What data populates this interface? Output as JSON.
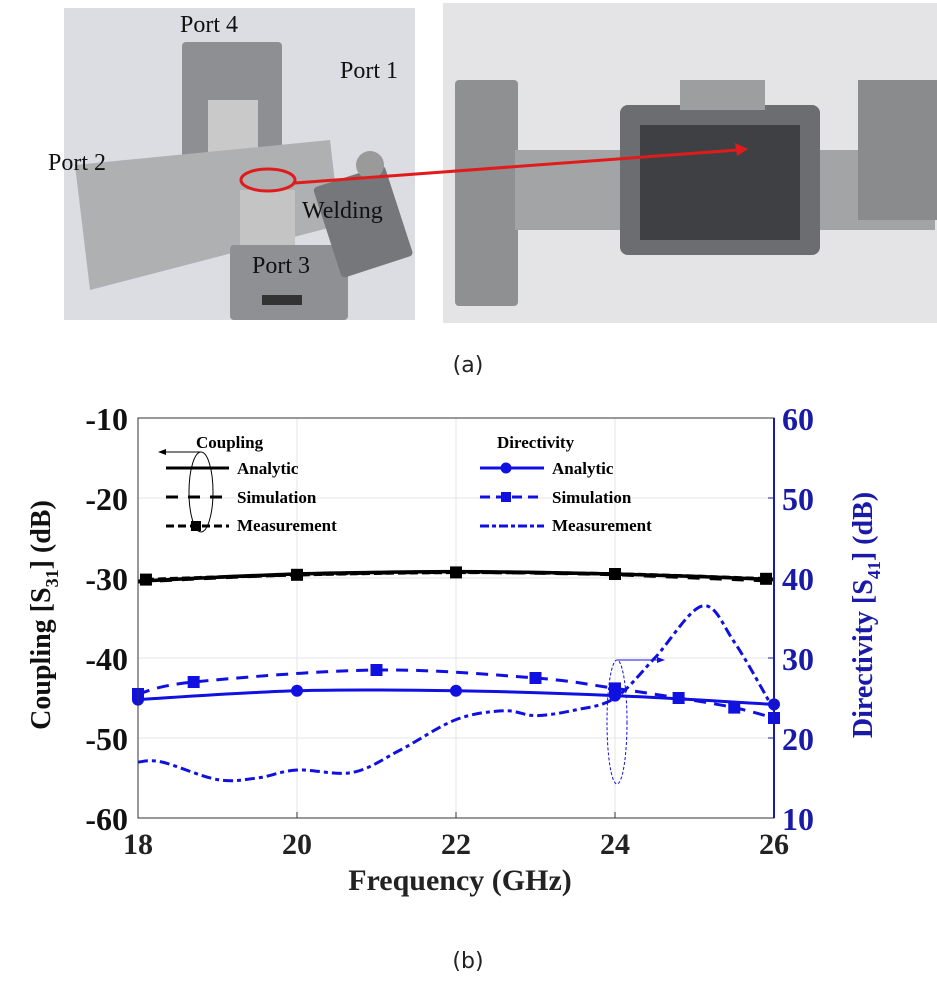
{
  "photo": {
    "labels": {
      "port4": "Port 4",
      "port1": "Port 1",
      "port2": "Port 2",
      "welding": "Welding",
      "port3": "Port 3"
    },
    "caption": "(a)",
    "highlight_color": "#e01b1b"
  },
  "chart_caption": "(b)",
  "chart_data": {
    "type": "line",
    "xlabel": "Frequency (GHz)",
    "ylabel_left": {
      "main": "Coupling [S",
      "sub": "31",
      "tail": "] (dB)"
    },
    "ylabel_right": {
      "main": "Directivity [S",
      "sub": "41",
      "tail": "] (dB)"
    },
    "xlim": [
      18,
      26
    ],
    "ylim_left": [
      -60,
      -10
    ],
    "ylim_right": [
      10,
      60
    ],
    "xticks": [
      "18",
      "20",
      "22",
      "24",
      "26"
    ],
    "yticks_left": [
      "-10",
      "-20",
      "-30",
      "-40",
      "-50",
      "-60"
    ],
    "yticks_right": [
      "60",
      "50",
      "40",
      "30",
      "20",
      "10"
    ],
    "grid": true,
    "colors": {
      "coupling": "#000000",
      "directivity": "#1010e0",
      "right_axis": "#1a1aa8"
    },
    "legend": {
      "coupling_title": "Coupling",
      "directivity_title": "Directivity",
      "coupling_entries": [
        "Analytic",
        "Simulation",
        "Measurement"
      ],
      "directivity_entries": [
        "Analytic",
        "Simulation",
        "Measurement"
      ],
      "placement": "top"
    },
    "series": [
      {
        "name": "Analytic",
        "group": "Coupling",
        "axis": "left",
        "style": "solid",
        "x": [
          18,
          19,
          20,
          21,
          22,
          23,
          24,
          25,
          26
        ],
        "y": [
          -30.4,
          -29.9,
          -29.5,
          -29.3,
          -29.2,
          -29.3,
          -29.5,
          -29.8,
          -30.2
        ]
      },
      {
        "name": "Simulation",
        "group": "Coupling",
        "axis": "left",
        "style": "dashed",
        "x": [
          18,
          19,
          20,
          21,
          22,
          23,
          24,
          25,
          26
        ],
        "y": [
          -30.5,
          -30.0,
          -29.6,
          -29.4,
          -29.3,
          -29.4,
          -29.6,
          -30.0,
          -30.4
        ]
      },
      {
        "name": "Measurement",
        "group": "Coupling",
        "axis": "left",
        "style": "dash-square",
        "x": [
          18.1,
          20,
          22,
          24,
          25.9
        ],
        "y": [
          -30.2,
          -29.6,
          -29.3,
          -29.5,
          -30.1
        ]
      },
      {
        "name": "Analytic",
        "group": "Directivity",
        "axis": "right",
        "style": "solid-circle",
        "x": [
          18,
          20,
          22,
          24,
          26
        ],
        "y": [
          24.8,
          25.9,
          25.9,
          25.3,
          24.2
        ]
      },
      {
        "name": "Simulation",
        "group": "Directivity",
        "axis": "right",
        "style": "dashed-square",
        "x": [
          18,
          18.7,
          21,
          23,
          24,
          24.8,
          25.5,
          26
        ],
        "y": [
          25.5,
          27.0,
          28.5,
          27.5,
          26.2,
          25.0,
          23.8,
          22.5
        ]
      },
      {
        "name": "Measurement",
        "group": "Directivity",
        "axis": "right",
        "style": "dash-dot",
        "x": [
          18,
          18.3,
          19,
          19.5,
          20,
          20.7,
          21.3,
          22,
          22.6,
          23,
          23.5,
          24,
          24.5,
          25.1,
          25.5,
          26
        ],
        "y": [
          17.0,
          17.0,
          14.8,
          15.0,
          16.0,
          15.7,
          18.5,
          22.3,
          23.4,
          22.8,
          23.5,
          25.0,
          30.0,
          36.5,
          32.0,
          23.5
        ]
      }
    ]
  }
}
